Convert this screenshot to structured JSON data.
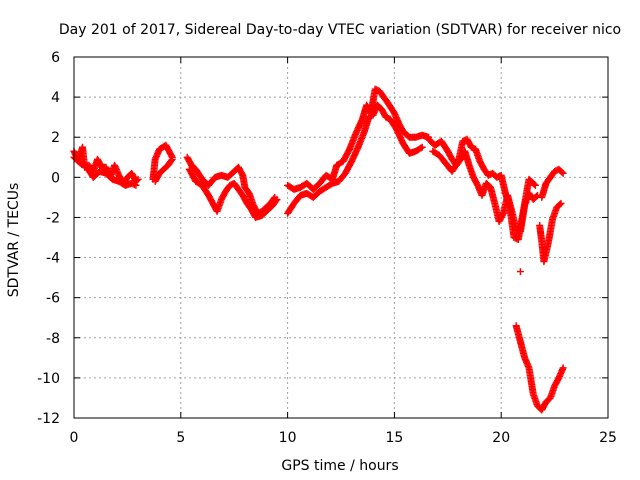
{
  "chart_data": {
    "type": "scatter",
    "title": "Day 201 of 2017, Sidereal Day-to-day VTEC variation (SDTVAR) for receiver nico",
    "xlabel": "GPS time / hours",
    "ylabel": "SDTVAR / TECUs",
    "xlim": [
      0,
      25
    ],
    "ylim": [
      -12,
      6
    ],
    "xticks": [
      0,
      5,
      10,
      15,
      20,
      25
    ],
    "yticks": [
      -12,
      -10,
      -8,
      -6,
      -4,
      -2,
      0,
      2,
      4,
      6
    ],
    "grid": true,
    "marker": "+",
    "series": [
      {
        "name": "SDTVAR",
        "color": "#ff0000",
        "segments": [
          [
            [
              0.0,
              1.3
            ],
            [
              0.2,
              0.8
            ],
            [
              0.4,
              1.5
            ],
            [
              0.5,
              0.5
            ],
            [
              0.7,
              0.6
            ],
            [
              0.9,
              0.3
            ],
            [
              1.1,
              0.9
            ],
            [
              1.3,
              0.5
            ],
            [
              1.5,
              0.5
            ],
            [
              1.7,
              0.0
            ],
            [
              1.9,
              0.6
            ],
            [
              2.1,
              0.1
            ],
            [
              2.3,
              -0.3
            ],
            [
              2.5,
              0.0
            ],
            [
              2.7,
              0.2
            ],
            [
              2.9,
              -0.2
            ],
            [
              3.0,
              -0.1
            ]
          ],
          [
            [
              0.0,
              1.0
            ],
            [
              0.3,
              0.7
            ],
            [
              0.6,
              0.5
            ],
            [
              0.9,
              0.0
            ],
            [
              1.2,
              0.3
            ],
            [
              1.5,
              0.2
            ],
            [
              1.8,
              -0.1
            ],
            [
              2.1,
              -0.2
            ],
            [
              2.4,
              -0.4
            ],
            [
              2.7,
              -0.3
            ],
            [
              2.9,
              -0.4
            ]
          ],
          [
            [
              3.7,
              -0.1
            ],
            [
              3.8,
              0.9
            ],
            [
              4.0,
              1.4
            ],
            [
              4.3,
              1.6
            ],
            [
              4.5,
              1.2
            ],
            [
              4.6,
              1.0
            ]
          ],
          [
            [
              3.8,
              -0.2
            ],
            [
              4.0,
              0.2
            ],
            [
              4.2,
              0.4
            ],
            [
              4.4,
              0.6
            ],
            [
              4.6,
              0.9
            ]
          ],
          [
            [
              5.3,
              1.0
            ],
            [
              5.5,
              0.6
            ],
            [
              5.7,
              0.4
            ],
            [
              6.0,
              -0.1
            ],
            [
              6.3,
              -0.4
            ],
            [
              6.6,
              0.0
            ],
            [
              6.9,
              0.1
            ],
            [
              7.2,
              0.0
            ],
            [
              7.4,
              0.2
            ],
            [
              7.7,
              0.5
            ],
            [
              7.9,
              0.1
            ],
            [
              8.0,
              -0.5
            ],
            [
              8.2,
              -0.8
            ],
            [
              8.4,
              -1.4
            ],
            [
              8.6,
              -1.8
            ],
            [
              8.8,
              -1.7
            ],
            [
              9.0,
              -1.5
            ],
            [
              9.2,
              -1.3
            ],
            [
              9.4,
              -1.0
            ]
          ],
          [
            [
              5.4,
              0.4
            ],
            [
              5.7,
              -0.2
            ],
            [
              6.0,
              -0.4
            ],
            [
              6.3,
              -0.9
            ],
            [
              6.5,
              -1.3
            ],
            [
              6.7,
              -1.7
            ],
            [
              6.9,
              -1.1
            ],
            [
              7.1,
              -0.7
            ],
            [
              7.3,
              -0.4
            ],
            [
              7.5,
              -0.3
            ],
            [
              7.7,
              -0.6
            ],
            [
              7.9,
              -0.9
            ],
            [
              8.1,
              -1.3
            ],
            [
              8.3,
              -1.6
            ],
            [
              8.5,
              -2.0
            ],
            [
              8.8,
              -1.9
            ],
            [
              9.0,
              -1.7
            ],
            [
              9.3,
              -1.4
            ],
            [
              9.5,
              -1.1
            ]
          ],
          [
            [
              10.0,
              -0.4
            ],
            [
              10.3,
              -0.6
            ],
            [
              10.6,
              -0.5
            ],
            [
              10.9,
              -0.3
            ],
            [
              11.2,
              -0.6
            ],
            [
              11.5,
              -0.3
            ],
            [
              11.8,
              0.1
            ],
            [
              12.1,
              -0.1
            ],
            [
              12.3,
              0.6
            ],
            [
              12.6,
              0.8
            ],
            [
              12.9,
              1.4
            ],
            [
              13.2,
              2.2
            ],
            [
              13.5,
              2.9
            ],
            [
              13.7,
              3.6
            ],
            [
              13.9,
              3.2
            ],
            [
              14.1,
              4.4
            ],
            [
              14.3,
              4.3
            ],
            [
              14.5,
              4.0
            ],
            [
              14.7,
              3.7
            ],
            [
              15.0,
              3.2
            ],
            [
              15.2,
              2.7
            ],
            [
              15.4,
              2.3
            ],
            [
              15.7,
              2.0
            ],
            [
              16.0,
              2.0
            ],
            [
              16.3,
              2.1
            ],
            [
              16.6,
              2.0
            ]
          ],
          [
            [
              10.0,
              -1.8
            ],
            [
              10.3,
              -1.3
            ],
            [
              10.6,
              -0.9
            ],
            [
              10.9,
              -0.8
            ],
            [
              11.2,
              -1.0
            ],
            [
              11.5,
              -0.7
            ],
            [
              11.8,
              -0.5
            ],
            [
              12.1,
              -0.3
            ],
            [
              12.4,
              -0.2
            ],
            [
              12.7,
              0.2
            ],
            [
              13.0,
              0.8
            ],
            [
              13.3,
              1.5
            ],
            [
              13.6,
              2.3
            ],
            [
              13.8,
              3.0
            ],
            [
              14.0,
              3.1
            ],
            [
              14.2,
              3.6
            ],
            [
              14.4,
              3.4
            ],
            [
              14.6,
              3.0
            ],
            [
              14.8,
              2.9
            ],
            [
              15.1,
              2.4
            ],
            [
              15.4,
              1.7
            ],
            [
              15.7,
              1.2
            ],
            [
              16.0,
              1.3
            ],
            [
              16.3,
              1.5
            ]
          ],
          [
            [
              16.6,
              1.9
            ],
            [
              16.9,
              1.6
            ],
            [
              17.2,
              1.8
            ],
            [
              17.5,
              1.3
            ],
            [
              17.7,
              0.9
            ],
            [
              17.9,
              0.6
            ],
            [
              18.1,
              0.9
            ],
            [
              18.3,
              1.3
            ],
            [
              18.5,
              0.6
            ],
            [
              18.7,
              0.0
            ],
            [
              18.9,
              -0.4
            ],
            [
              19.1,
              -0.9
            ],
            [
              19.3,
              -0.3
            ],
            [
              19.5,
              -0.5
            ],
            [
              19.7,
              -1.3
            ],
            [
              19.9,
              -2.2
            ],
            [
              20.1,
              -1.8
            ],
            [
              20.3,
              -0.9
            ],
            [
              20.5,
              -1.7
            ],
            [
              20.7,
              -2.6
            ],
            [
              20.9,
              -2.7
            ],
            [
              21.1,
              -1.4
            ],
            [
              21.3,
              -0.8
            ],
            [
              21.5,
              -1.1
            ],
            [
              21.7,
              -0.9
            ]
          ],
          [
            [
              16.8,
              1.3
            ],
            [
              17.1,
              1.1
            ],
            [
              17.4,
              0.7
            ],
            [
              17.7,
              0.3
            ],
            [
              18.0,
              0.8
            ],
            [
              18.2,
              1.8
            ],
            [
              18.4,
              1.9
            ],
            [
              18.6,
              1.5
            ],
            [
              18.8,
              1.4
            ],
            [
              19.0,
              0.8
            ],
            [
              19.2,
              0.4
            ],
            [
              19.4,
              0.1
            ],
            [
              19.6,
              0.2
            ],
            [
              19.8,
              0.0
            ],
            [
              20.0,
              0.1
            ],
            [
              20.2,
              -0.8
            ],
            [
              20.4,
              -1.5
            ],
            [
              20.6,
              -3.0
            ],
            [
              20.8,
              -3.1
            ],
            [
              21.0,
              -1.9
            ],
            [
              21.3,
              -0.1
            ],
            [
              21.6,
              -0.4
            ]
          ],
          [
            [
              21.9,
              -1.0
            ],
            [
              22.1,
              -0.3
            ],
            [
              22.3,
              0.0
            ],
            [
              22.5,
              0.3
            ],
            [
              22.7,
              0.4
            ],
            [
              22.9,
              0.2
            ]
          ],
          [
            [
              21.8,
              -2.4
            ],
            [
              21.9,
              -3.2
            ],
            [
              22.0,
              -4.2
            ],
            [
              22.2,
              -3.3
            ],
            [
              22.4,
              -2.1
            ],
            [
              22.6,
              -1.5
            ],
            [
              22.8,
              -1.3
            ]
          ],
          [
            [
              20.9,
              -4.7
            ]
          ],
          [
            [
              20.7,
              -7.4
            ],
            [
              20.9,
              -8.2
            ],
            [
              21.1,
              -9.0
            ],
            [
              21.3,
              -9.5
            ],
            [
              21.5,
              -10.8
            ],
            [
              21.7,
              -11.4
            ],
            [
              21.9,
              -11.6
            ],
            [
              22.1,
              -11.2
            ],
            [
              22.3,
              -11.0
            ],
            [
              22.5,
              -10.4
            ],
            [
              22.7,
              -10.0
            ],
            [
              22.9,
              -9.5
            ]
          ]
        ]
      }
    ]
  }
}
